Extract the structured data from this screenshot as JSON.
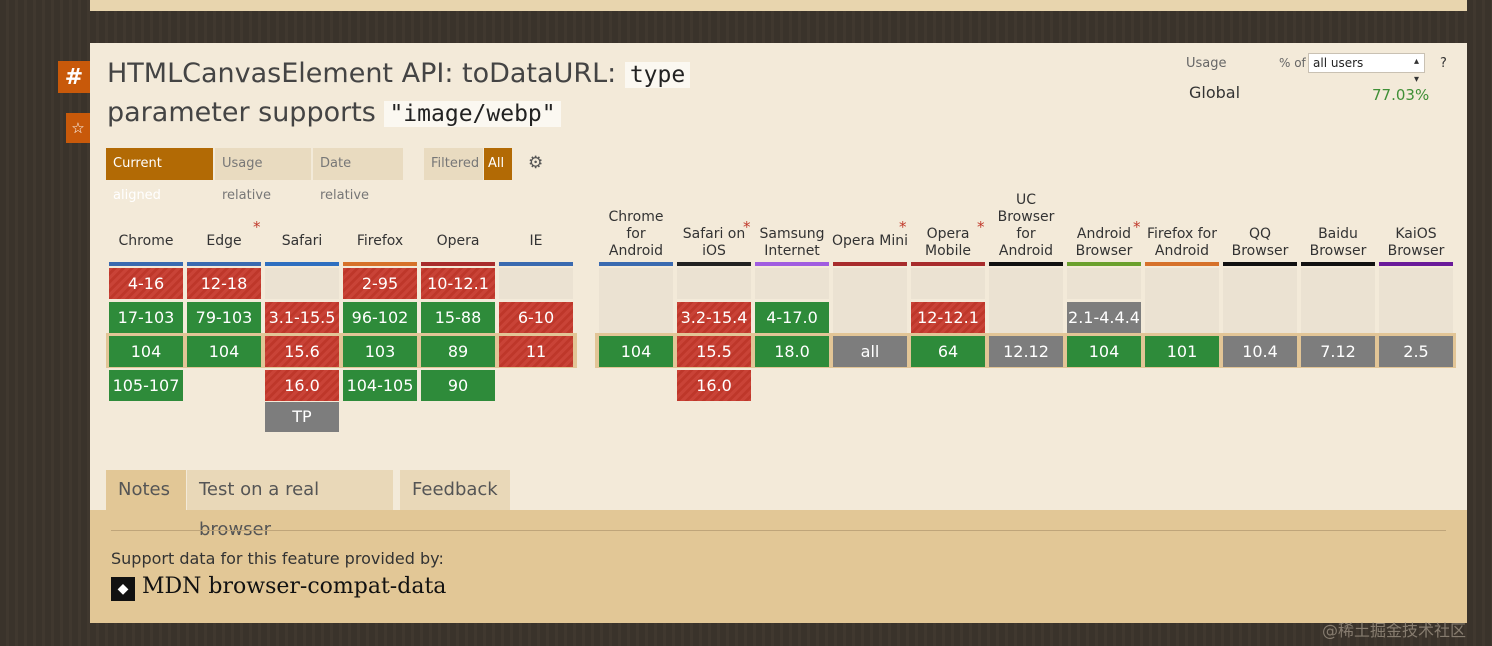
{
  "feature": {
    "title_prefix": "HTMLCanvasElement API: toDataURL:",
    "title_code1": "type",
    "title_mid": "parameter supports",
    "title_code2": "\"image/webp\""
  },
  "side": {
    "hash": "#",
    "star": "☆"
  },
  "usage": {
    "label": "Usage",
    "pct_of": "% of",
    "selector": "all users",
    "help": "?",
    "region": "Global",
    "value": "77.03%"
  },
  "view_buttons": {
    "current_aligned": "Current aligned",
    "usage_relative": "Usage relative",
    "date_relative": "Date relative",
    "filtered": "Filtered",
    "all": "All"
  },
  "colors": {
    "supported": "#2e8b3a",
    "unsupported": "#c6392c",
    "unknown": "#7d7d7d",
    "accent": "#b26a05"
  },
  "browsers": [
    {
      "name": "Chrome",
      "color": "#3a6ab0",
      "note": false,
      "versions": {
        "r1": "4-16",
        "r2": "17-103",
        "r3": "104",
        "r4": "105-107",
        "r5": ""
      },
      "status": {
        "r1": "n",
        "r2": "y",
        "r3": "y",
        "r4": "y",
        "r5": ""
      }
    },
    {
      "name": "Edge",
      "color": "#3a6ab0",
      "note": true,
      "versions": {
        "r1": "12-18",
        "r2": "79-103",
        "r3": "104",
        "r4": "",
        "r5": ""
      },
      "status": {
        "r1": "n",
        "r2": "y",
        "r3": "y",
        "r4": "",
        "r5": ""
      }
    },
    {
      "name": "Safari",
      "color": "#2e6fc0",
      "note": false,
      "versions": {
        "r1": "",
        "r2": "3.1-15.5",
        "r3": "15.6",
        "r4": "16.0",
        "r5": "TP"
      },
      "status": {
        "r1": "",
        "r2": "n",
        "r3": "n",
        "r4": "n",
        "r5": "u"
      }
    },
    {
      "name": "Firefox",
      "color": "#d6712a",
      "note": false,
      "versions": {
        "r1": "2-95",
        "r2": "96-102",
        "r3": "103",
        "r4": "104-105",
        "r5": ""
      },
      "status": {
        "r1": "n",
        "r2": "y",
        "r3": "y",
        "r4": "y",
        "r5": ""
      }
    },
    {
      "name": "Opera",
      "color": "#a82c2c",
      "note": false,
      "versions": {
        "r1": "10-12.1",
        "r2": "15-88",
        "r3": "89",
        "r4": "90",
        "r5": ""
      },
      "status": {
        "r1": "n",
        "r2": "y",
        "r3": "y",
        "r4": "y",
        "r5": ""
      }
    },
    {
      "name": "IE",
      "color": "#3a6ab0",
      "note": false,
      "versions": {
        "r1": "",
        "r2": "6-10",
        "r3": "11",
        "r4": "",
        "r5": ""
      },
      "status": {
        "r1": "",
        "r2": "n",
        "r3": "n",
        "r4": "",
        "r5": ""
      }
    }
  ],
  "mobile_browsers": [
    {
      "name": "Chrome for Android",
      "versions": {
        "r2": "",
        "r3": "104",
        "r4": ""
      },
      "status": {
        "r2": "",
        "r3": "y",
        "r4": ""
      }
    },
    {
      "name": "Safari on iOS",
      "note": true,
      "versions": {
        "r2": "3.2-15.4",
        "r3": "15.5",
        "r4": "16.0"
      },
      "status": {
        "r2": "n",
        "r3": "n",
        "r4": "n"
      }
    },
    {
      "name": "Samsung Internet",
      "versions": {
        "r2": "4-17.0",
        "r3": "18.0",
        "r4": ""
      },
      "status": {
        "r2": "y",
        "r3": "y",
        "r4": ""
      }
    },
    {
      "name": "Opera Mini",
      "note": true,
      "versions": {
        "r2": "",
        "r3": "all",
        "r4": ""
      },
      "status": {
        "r2": "",
        "r3": "u",
        "r4": ""
      }
    },
    {
      "name": "Opera Mobile",
      "note": true,
      "versions": {
        "r2": "12-12.1",
        "r3": "64",
        "r4": ""
      },
      "status": {
        "r2": "n",
        "r3": "y",
        "r4": ""
      }
    },
    {
      "name": "UC Browser for Android",
      "versions": {
        "r2": "",
        "r3": "12.12",
        "r4": ""
      },
      "status": {
        "r2": "",
        "r3": "u",
        "r4": ""
      }
    },
    {
      "name": "Android Browser",
      "note": true,
      "versions": {
        "r2": "2.1-4.4.4",
        "r3": "104",
        "r4": ""
      },
      "status": {
        "r2": "u",
        "r3": "y",
        "r4": ""
      }
    },
    {
      "name": "Firefox for Android",
      "versions": {
        "r2": "",
        "r3": "101",
        "r4": ""
      },
      "status": {
        "r2": "",
        "r3": "y",
        "r4": ""
      }
    },
    {
      "name": "QQ Browser",
      "versions": {
        "r2": "",
        "r3": "10.4",
        "r4": ""
      },
      "status": {
        "r2": "",
        "r3": "u",
        "r4": ""
      }
    },
    {
      "name": "Baidu Browser",
      "versions": {
        "r2": "",
        "r3": "7.12",
        "r4": ""
      },
      "status": {
        "r2": "",
        "r3": "u",
        "r4": ""
      }
    },
    {
      "name": "KaiOS Browser",
      "versions": {
        "r2": "",
        "r3": "2.5",
        "r4": ""
      },
      "status": {
        "r2": "",
        "r3": "u",
        "r4": ""
      }
    }
  ],
  "tabs": {
    "notes": "Notes",
    "test": "Test on a real browser",
    "feedback": "Feedback"
  },
  "support": {
    "text": "Support data for this feature provided by:",
    "source": "MDN browser-compat-data"
  },
  "watermark": "@稀土掘金技术社区"
}
